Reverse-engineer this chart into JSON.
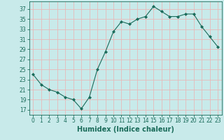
{
  "x": [
    0,
    1,
    2,
    3,
    4,
    5,
    6,
    7,
    8,
    9,
    10,
    11,
    12,
    13,
    14,
    15,
    16,
    17,
    18,
    19,
    20,
    21,
    22,
    23
  ],
  "y": [
    24,
    22,
    21,
    20.5,
    19.5,
    19,
    17.2,
    19.5,
    25,
    28.5,
    32.5,
    34.5,
    34,
    35,
    35.5,
    37.5,
    36.5,
    35.5,
    35.5,
    36,
    36,
    33.5,
    31.5,
    29.5
  ],
  "line_color": "#1a6b5a",
  "marker": "D",
  "marker_size": 2.0,
  "bg_color": "#c8eaea",
  "grid_color": "#e8b8b8",
  "title": "",
  "xlabel": "Humidex (Indice chaleur)",
  "ylabel": "",
  "xlim": [
    -0.5,
    23.5
  ],
  "ylim": [
    16,
    38.5
  ],
  "yticks": [
    17,
    19,
    21,
    23,
    25,
    27,
    29,
    31,
    33,
    35,
    37
  ],
  "xticks": [
    0,
    1,
    2,
    3,
    4,
    5,
    6,
    7,
    8,
    9,
    10,
    11,
    12,
    13,
    14,
    15,
    16,
    17,
    18,
    19,
    20,
    21,
    22,
    23
  ],
  "tick_color": "#1a6b5a",
  "tick_fontsize": 5.5,
  "xlabel_fontsize": 7.0,
  "linewidth": 0.8
}
